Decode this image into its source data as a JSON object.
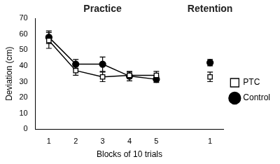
{
  "chart_data": {
    "type": "line",
    "annotations": [
      "Practice",
      "Retention"
    ],
    "categories": [
      "1",
      "2",
      "3",
      "4",
      "5",
      null,
      "1"
    ],
    "x_label": "Blocks of 10 trials",
    "y_label": "Deviation (cm)",
    "ylim": [
      0,
      70
    ],
    "yticks": [
      0,
      10,
      20,
      30,
      40,
      50,
      60,
      70
    ],
    "grid": false,
    "legend": "right",
    "series": [
      {
        "name": "PTC",
        "color": "#000000",
        "marker": "open-square",
        "values": [
          56,
          37,
          33,
          34,
          34,
          null,
          33
        ],
        "errors": [
          5,
          3,
          3,
          2,
          2.5,
          null,
          3
        ]
      },
      {
        "name": "Control",
        "color": "#000000",
        "marker": "circle",
        "values": [
          58,
          41,
          41,
          33.5,
          31.5,
          null,
          42
        ],
        "errors": [
          4,
          3,
          4.5,
          3,
          2,
          null,
          2
        ]
      }
    ]
  }
}
